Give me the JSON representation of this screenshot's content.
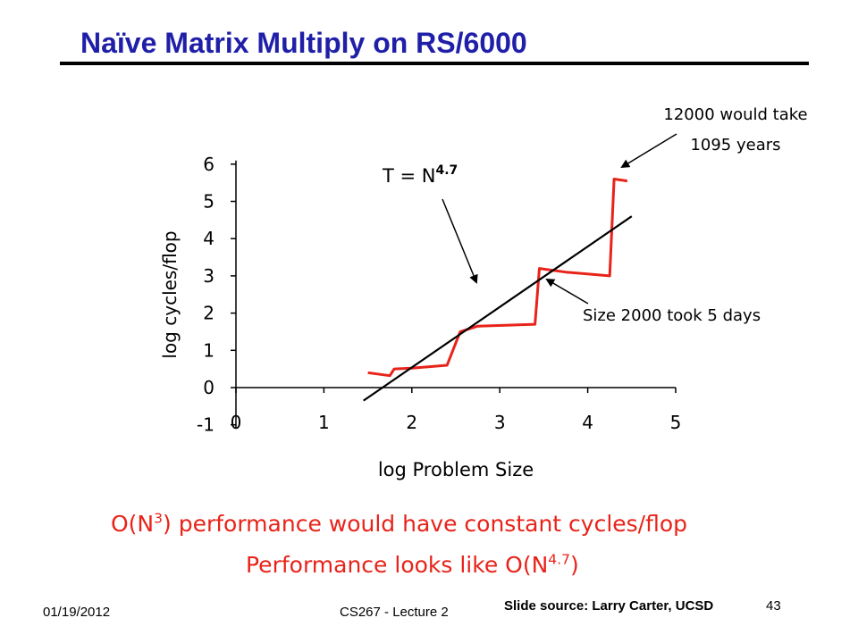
{
  "slide": {
    "title": "Naïve Matrix Multiply on RS/6000",
    "line1_pre": "O(N",
    "line1_sup": "3",
    "line1_post": ") performance would have constant cycles/flop",
    "line2_pre": "Performance looks like O(N",
    "line2_sup": "4.7",
    "line2_post": ")"
  },
  "footer": {
    "date": "01/19/2012",
    "course": "CS267 - Lecture 2",
    "source": "Slide source: Larry Carter, UCSD",
    "page": "43"
  },
  "chart_data": {
    "type": "line",
    "xlabel": "log Problem Size",
    "ylabel": "log cycles/flop",
    "xlim": [
      0,
      5
    ],
    "ylim": [
      -1,
      6
    ],
    "x_ticks": [
      "0",
      "1",
      "2",
      "3",
      "4",
      "5"
    ],
    "y_ticks": [
      "-1",
      "0",
      "1",
      "2",
      "3",
      "4",
      "5",
      "6"
    ],
    "grid": false,
    "series": [
      {
        "name": "",
        "color": "#e8231a",
        "points": [
          [
            1.5,
            0.4
          ],
          [
            1.75,
            0.32
          ],
          [
            1.8,
            0.5
          ],
          [
            2.0,
            0.52
          ],
          [
            2.4,
            0.6
          ],
          [
            2.55,
            1.5
          ],
          [
            2.75,
            1.65
          ],
          [
            3.4,
            1.7
          ],
          [
            3.45,
            3.2
          ],
          [
            3.75,
            3.1
          ],
          [
            4.25,
            3.0
          ],
          [
            4.3,
            5.6
          ],
          [
            4.45,
            5.55
          ]
        ]
      },
      {
        "name": "",
        "color": "#000000",
        "points": [
          [
            1.45,
            -0.35
          ],
          [
            4.5,
            4.6
          ]
        ]
      }
    ],
    "annotations": {
      "fit_pre": "T = N",
      "fit_sup": "4.7",
      "size2000": "Size 2000 took 5 days",
      "would_take_1": "12000 would take",
      "would_take_2": "1095 years"
    }
  }
}
